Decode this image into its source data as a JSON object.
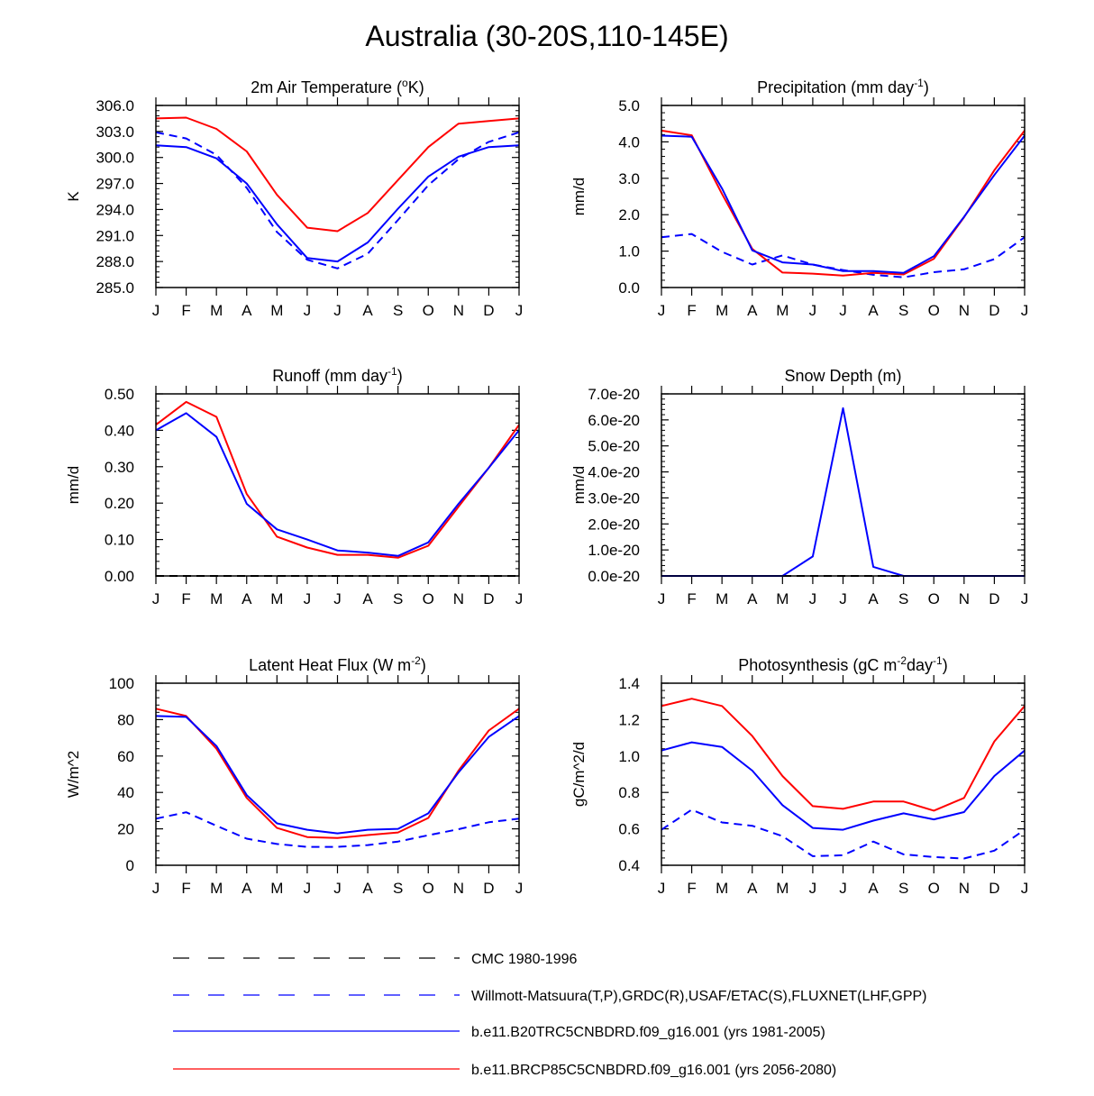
{
  "title": "Australia (30-20S,110-145E)",
  "months": [
    "J",
    "F",
    "M",
    "A",
    "M",
    "J",
    "J",
    "A",
    "S",
    "O",
    "N",
    "D",
    "J"
  ],
  "colors": {
    "cmc": "#000000",
    "obs": "#0000ff",
    "hist": "#0000ff",
    "rcp": "#ff0000"
  },
  "legend": [
    {
      "key": "cmc",
      "label": "CMC 1980-1996",
      "color": "#000000",
      "dash": true
    },
    {
      "key": "obs",
      "label": "Willmott-Matsuura(T,P),GRDC(R),USAF/ETAC(S),FLUXNET(LHF,GPP)",
      "color": "#0000ff",
      "dash": true
    },
    {
      "key": "hist",
      "label": "b.e11.B20TRC5CNBDRD.f09_g16.001 (yrs 1981-2005)",
      "color": "#0000ff",
      "dash": false
    },
    {
      "key": "rcp",
      "label": "b.e11.BRCP85C5CNBDRD.f09_g16.001 (yrs 2056-2080)",
      "color": "#ff0000",
      "dash": false
    }
  ],
  "chart_data": [
    {
      "type": "line",
      "title": "2m Air Temperature (oK)",
      "title_parts": [
        {
          "t": "2m Air Temperature ("
        },
        {
          "t": "o",
          "sup": true
        },
        {
          "t": "K)"
        }
      ],
      "ylabel": "K",
      "ylim": [
        285,
        306
      ],
      "yticks": [
        285,
        288,
        291,
        294,
        297,
        300,
        303,
        306
      ],
      "ytick_labels": [
        "285.0",
        "288.0",
        "291.0",
        "294.0",
        "297.0",
        "300.0",
        "303.0",
        "306.0"
      ],
      "series": [
        {
          "name": "b.e11.BRCP85C5CNBDRD.f09_g16.001 (yrs 2056-2080)",
          "key": "rcp",
          "values": [
            304.5,
            304.6,
            303.3,
            300.7,
            295.7,
            291.9,
            291.5,
            293.6,
            297.4,
            301.2,
            303.9,
            304.2,
            304.5
          ]
        },
        {
          "name": "Willmott-Matsuura(T,P),GRDC(R),USAF/ETAC(S),FLUXNET(LHF,GPP)",
          "key": "obs",
          "values": [
            302.9,
            302.2,
            300.3,
            296.5,
            291.4,
            288.2,
            287.2,
            288.9,
            292.8,
            296.8,
            299.8,
            301.8,
            302.9
          ]
        },
        {
          "name": "b.e11.B20TRC5CNBDRD.f09_g16.001 (yrs 1981-2005)",
          "key": "hist",
          "values": [
            301.4,
            301.2,
            299.9,
            297.0,
            292.3,
            288.4,
            288.0,
            290.2,
            294.1,
            297.8,
            300.1,
            301.2,
            301.4
          ]
        }
      ]
    },
    {
      "type": "line",
      "title": "Precipitation (mm day-1)",
      "title_parts": [
        {
          "t": "Precipitation (mm day"
        },
        {
          "t": "-1",
          "sup": true
        },
        {
          "t": ")"
        }
      ],
      "ylabel": "mm/d",
      "ylim": [
        0,
        5
      ],
      "yticks": [
        0,
        1,
        2,
        3,
        4,
        5
      ],
      "ytick_labels": [
        "0.0",
        "1.0",
        "2.0",
        "3.0",
        "4.0",
        "5.0"
      ],
      "series": [
        {
          "name": "Willmott-Matsuura(T,P),GRDC(R),USAF/ETAC(S),FLUXNET(LHF,GPP)",
          "key": "obs",
          "values": [
            1.38,
            1.47,
            0.98,
            0.63,
            0.88,
            0.63,
            0.48,
            0.35,
            0.28,
            0.42,
            0.5,
            0.78,
            1.38
          ]
        },
        {
          "name": "b.e11.BRCP85C5CNBDRD.f09_g16.001 (yrs 2056-2080)",
          "key": "rcp",
          "values": [
            4.31,
            4.18,
            2.57,
            1.06,
            0.41,
            0.38,
            0.33,
            0.4,
            0.36,
            0.79,
            1.93,
            3.22,
            4.31
          ]
        },
        {
          "name": "b.e11.B20TRC5CNBDRD.f09_g16.001 (yrs 1981-2005)",
          "key": "hist",
          "values": [
            4.17,
            4.14,
            2.72,
            1.02,
            0.69,
            0.63,
            0.45,
            0.45,
            0.4,
            0.86,
            1.94,
            3.09,
            4.17
          ]
        }
      ]
    },
    {
      "type": "line",
      "title": "Runoff (mm day-1)",
      "title_parts": [
        {
          "t": "Runoff (mm day"
        },
        {
          "t": "-1",
          "sup": true
        },
        {
          "t": ")"
        }
      ],
      "ylabel": "mm/d",
      "ylim": [
        0,
        0.5
      ],
      "yticks": [
        0,
        0.1,
        0.2,
        0.3,
        0.4,
        0.5
      ],
      "ytick_labels": [
        "0.00",
        "0.10",
        "0.20",
        "0.30",
        "0.40",
        "0.50"
      ],
      "series": [
        {
          "name": "CMC 1980-1996",
          "key": "cmc",
          "values": [
            0,
            0,
            0,
            0,
            0,
            0,
            0,
            0,
            0,
            0,
            0,
            0,
            0
          ]
        },
        {
          "name": "b.e11.BRCP85C5CNBDRD.f09_g16.001 (yrs 2056-2080)",
          "key": "rcp",
          "values": [
            0.415,
            0.478,
            0.437,
            0.225,
            0.108,
            0.078,
            0.058,
            0.058,
            0.05,
            0.083,
            0.19,
            0.297,
            0.415
          ]
        },
        {
          "name": "b.e11.B20TRC5CNBDRD.f09_g16.001 (yrs 1981-2005)",
          "key": "hist",
          "values": [
            0.4,
            0.447,
            0.382,
            0.198,
            0.128,
            0.1,
            0.07,
            0.064,
            0.055,
            0.092,
            0.198,
            0.297,
            0.4
          ]
        }
      ]
    },
    {
      "type": "line",
      "title": "Snow Depth (m)",
      "title_parts": [
        {
          "t": "Snow Depth (m)"
        }
      ],
      "ylabel": "mm/d",
      "ylim": [
        0,
        7e-20
      ],
      "yticks": [
        0,
        1e-20,
        2e-20,
        3e-20,
        4e-20,
        5e-20,
        6e-20,
        7e-20
      ],
      "ytick_labels": [
        "0.0e-20",
        "1.0e-20",
        "2.0e-20",
        "3.0e-20",
        "4.0e-20",
        "5.0e-20",
        "6.0e-20",
        "7.0e-20"
      ],
      "series": [
        {
          "name": "CMC 1980-1996",
          "key": "cmc",
          "values": [
            0,
            0,
            0,
            0,
            0,
            0,
            0,
            0,
            0,
            0,
            0,
            0,
            0
          ]
        },
        {
          "name": "b.e11.B20TRC5CNBDRD.f09_g16.001 (yrs 1981-2005)",
          "key": "hist",
          "values": [
            0,
            0,
            0,
            0,
            0,
            7.5e-21,
            6.45e-20,
            3.5e-21,
            0,
            0,
            0,
            0,
            0
          ]
        }
      ]
    },
    {
      "type": "line",
      "title": "Latent Heat Flux (W m-2)",
      "title_parts": [
        {
          "t": "Latent Heat Flux (W m"
        },
        {
          "t": "-2",
          "sup": true
        },
        {
          "t": ")"
        }
      ],
      "ylabel": "W/m^2",
      "ylim": [
        0,
        100
      ],
      "yticks": [
        0,
        20,
        40,
        60,
        80,
        100
      ],
      "ytick_labels": [
        "0",
        "20",
        "40",
        "60",
        "80",
        "100"
      ],
      "series": [
        {
          "name": "Willmott-Matsuura(T,P),GRDC(R),USAF/ETAC(S),FLUXNET(LHF,GPP)",
          "key": "obs",
          "values": [
            25.6,
            29.1,
            21.7,
            14.6,
            11.7,
            10.1,
            10.1,
            11.1,
            13.0,
            16.5,
            19.8,
            23.6,
            25.6
          ]
        },
        {
          "name": "b.e11.BRCP85C5CNBDRD.f09_g16.001 (yrs 2056-2080)",
          "key": "rcp",
          "values": [
            86.0,
            82.0,
            64.0,
            37.0,
            20.5,
            15.5,
            15.0,
            16.6,
            18.0,
            26.0,
            52.0,
            74.0,
            86.0
          ]
        },
        {
          "name": "b.e11.B20TRC5CNBDRD.f09_g16.001 (yrs 1981-2005)",
          "key": "hist",
          "values": [
            82.0,
            81.5,
            65.5,
            38.5,
            23.0,
            19.5,
            17.5,
            19.5,
            20.0,
            28.5,
            51.0,
            70.5,
            82.0
          ]
        }
      ]
    },
    {
      "type": "line",
      "title": "Photosynthesis (gC m-2day-1)",
      "title_parts": [
        {
          "t": "Photosynthesis (gC m"
        },
        {
          "t": "-2",
          "sup": true
        },
        {
          "t": "day"
        },
        {
          "t": "-1",
          "sup": true
        },
        {
          "t": ")"
        }
      ],
      "ylabel": "gC/m^2/d",
      "ylim": [
        0.4,
        1.4
      ],
      "yticks": [
        0.4,
        0.6,
        0.8,
        1.0,
        1.2,
        1.4
      ],
      "ytick_labels": [
        "0.4",
        "0.6",
        "0.8",
        "1.0",
        "1.2",
        "1.4"
      ],
      "series": [
        {
          "name": "Willmott-Matsuura(T,P),GRDC(R),USAF/ETAC(S),FLUXNET(LHF,GPP)",
          "key": "obs",
          "values": [
            0.595,
            0.705,
            0.635,
            0.617,
            0.56,
            0.45,
            0.455,
            0.53,
            0.46,
            0.445,
            0.437,
            0.48,
            0.595
          ]
        },
        {
          "name": "b.e11.BRCP85C5CNBDRD.f09_g16.001 (yrs 2056-2080)",
          "key": "rcp",
          "values": [
            1.275,
            1.315,
            1.275,
            1.11,
            0.89,
            0.725,
            0.71,
            0.75,
            0.75,
            0.7,
            0.77,
            1.08,
            1.275
          ]
        },
        {
          "name": "b.e11.B20TRC5CNBDRD.f09_g16.001 (yrs 1981-2005)",
          "key": "hist",
          "values": [
            1.03,
            1.075,
            1.05,
            0.92,
            0.73,
            0.605,
            0.595,
            0.645,
            0.685,
            0.652,
            0.692,
            0.89,
            1.03
          ]
        }
      ]
    }
  ]
}
